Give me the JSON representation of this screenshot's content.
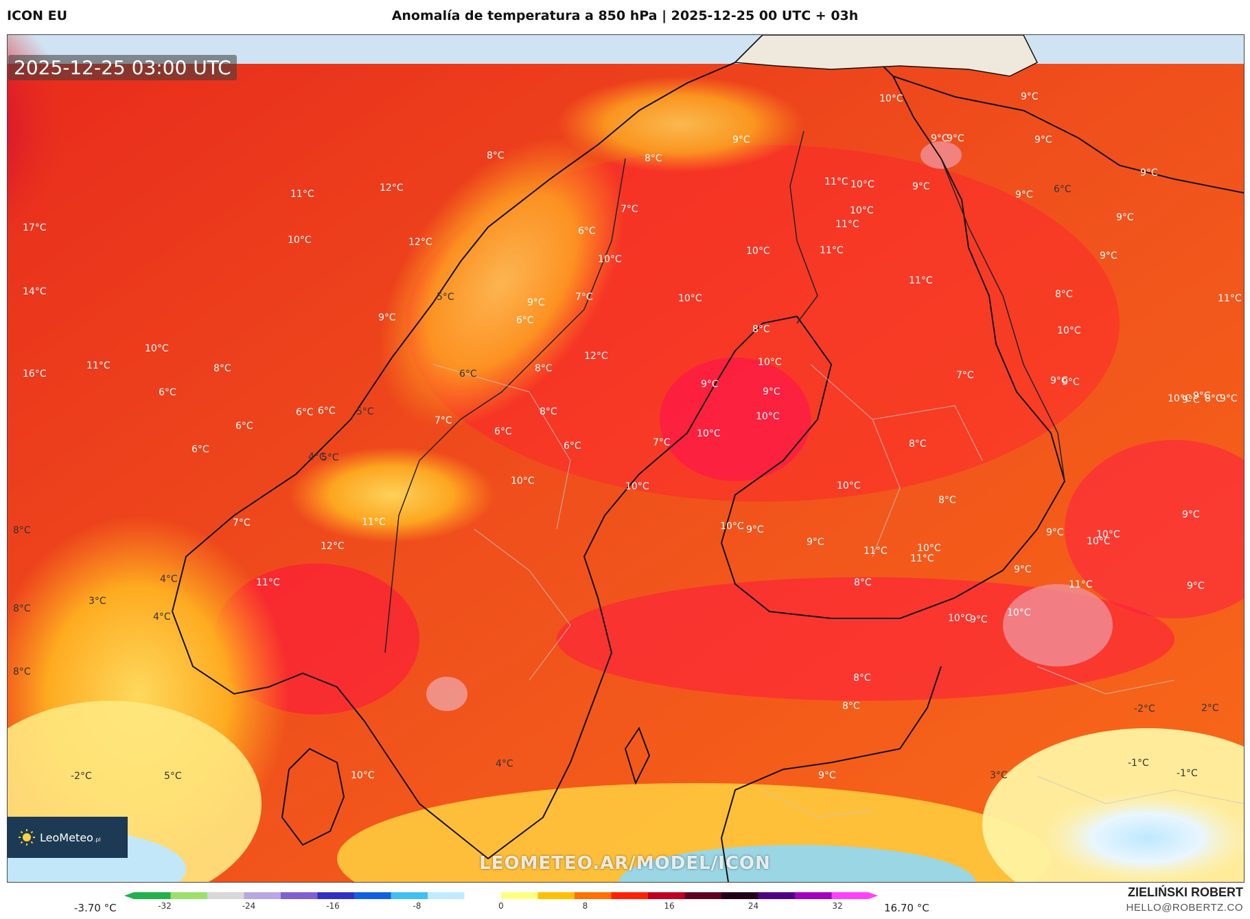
{
  "header": {
    "model": "ICON EU",
    "title": "Anomalía de temperatura a 850 hPa | 2025-12-25 00 UTC + 03h"
  },
  "map": {
    "valid_time": "2025-12-25 03:00 UTC",
    "watermark": "LEOMETEO.AR/MODEL/ICON",
    "logo": {
      "text": "LeoMeteo",
      "suffix": ".pl",
      "icon": "sun-icon"
    },
    "sea_color": "#cfe3f2",
    "labels": [
      {
        "text": "17°C",
        "color": "#ffffff"
      },
      {
        "text": "14°C",
        "color": "#ffffff"
      },
      {
        "text": "16°C",
        "color": "#ffffff"
      },
      {
        "text": "11°C",
        "color": "#ffffff"
      },
      {
        "text": "12°C",
        "color": "#ffffff"
      },
      {
        "text": "10°C",
        "color": "#ffffff"
      },
      {
        "text": "12°C",
        "color": "#ffffff"
      },
      {
        "text": "10°C",
        "color": "#ffffff"
      },
      {
        "text": "11°C",
        "color": "#ffffff"
      },
      {
        "text": "12°C",
        "color": "#ffffff"
      },
      {
        "text": "8°C",
        "color": "#ffffff"
      },
      {
        "text": "8°C",
        "color": "#ffffff"
      },
      {
        "text": "6°C",
        "color": "#ffffff"
      },
      {
        "text": "6°C",
        "color": "#ffffff"
      },
      {
        "text": "6°C",
        "color": "#ffffff"
      },
      {
        "text": "6°C",
        "color": "#ffffff"
      },
      {
        "text": "5°C",
        "color": "#333333"
      },
      {
        "text": "8°C",
        "color": "#333333"
      },
      {
        "text": "8°C",
        "color": "#333333"
      },
      {
        "text": "3°C",
        "color": "#333333"
      },
      {
        "text": "4°C",
        "color": "#333333"
      },
      {
        "text": "4°C",
        "color": "#333333"
      },
      {
        "text": "8°C",
        "color": "#333333"
      },
      {
        "text": "-2°C",
        "color": "#333333"
      },
      {
        "text": "5°C",
        "color": "#333333"
      },
      {
        "text": "9°C",
        "color": "#ffffff"
      },
      {
        "text": "8°C",
        "color": "#ffffff"
      },
      {
        "text": "9°C",
        "color": "#ffffff"
      },
      {
        "text": "10°C",
        "color": "#ffffff"
      },
      {
        "text": "11°C",
        "color": "#ffffff"
      },
      {
        "text": "9°C",
        "color": "#ffffff"
      },
      {
        "text": "8°C",
        "color": "#ffffff"
      },
      {
        "text": "7°C",
        "color": "#ffffff"
      },
      {
        "text": "6°C",
        "color": "#ffffff"
      },
      {
        "text": "7°C",
        "color": "#ffffff"
      },
      {
        "text": "5°C",
        "color": "#333333"
      },
      {
        "text": "6°C",
        "color": "#ffffff"
      },
      {
        "text": "6°C",
        "color": "#333333"
      },
      {
        "text": "8°C",
        "color": "#ffffff"
      },
      {
        "text": "7°C",
        "color": "#ffffff"
      },
      {
        "text": "8°C",
        "color": "#ffffff"
      },
      {
        "text": "6°C",
        "color": "#ffffff"
      },
      {
        "text": "7°C",
        "color": "#ffffff"
      },
      {
        "text": "6°C",
        "color": "#ffffff"
      },
      {
        "text": "5°C",
        "color": "#333333"
      },
      {
        "text": "6°C",
        "color": "#ffffff"
      },
      {
        "text": "7°C",
        "color": "#ffffff"
      },
      {
        "text": "4°C",
        "color": "#333333"
      },
      {
        "text": "11°C",
        "color": "#ffffff"
      },
      {
        "text": "12°C",
        "color": "#ffffff"
      },
      {
        "text": "11°C",
        "color": "#ffffff"
      },
      {
        "text": "10°C",
        "color": "#ffffff"
      },
      {
        "text": "10°C",
        "color": "#ffffff"
      },
      {
        "text": "10°C",
        "color": "#ffffff"
      },
      {
        "text": "9°C",
        "color": "#ffffff"
      },
      {
        "text": "10°C",
        "color": "#ffffff"
      },
      {
        "text": "10°C",
        "color": "#ffffff"
      },
      {
        "text": "10°C",
        "color": "#ffffff"
      },
      {
        "text": "9°C",
        "color": "#ffffff"
      },
      {
        "text": "9°C",
        "color": "#ffffff"
      },
      {
        "text": "9°C",
        "color": "#ffffff"
      },
      {
        "text": "9°C",
        "color": "#ffffff"
      },
      {
        "text": "9°C",
        "color": "#ffffff"
      },
      {
        "text": "9°C",
        "color": "#ffffff"
      },
      {
        "text": "9°C",
        "color": "#ffffff"
      },
      {
        "text": "9°C",
        "color": "#ffffff"
      },
      {
        "text": "9°C",
        "color": "#ffffff"
      },
      {
        "text": "8°C",
        "color": "#ffffff"
      },
      {
        "text": "6°C",
        "color": "#333333"
      },
      {
        "text": "4°C",
        "color": "#333333"
      },
      {
        "text": "10°C",
        "color": "#ffffff"
      },
      {
        "text": "11°C",
        "color": "#ffffff"
      },
      {
        "text": "10°C",
        "color": "#ffffff"
      },
      {
        "text": "10°C",
        "color": "#ffffff"
      },
      {
        "text": "11°C",
        "color": "#ffffff"
      },
      {
        "text": "11°C",
        "color": "#ffffff"
      },
      {
        "text": "10°C",
        "color": "#ffffff"
      },
      {
        "text": "9°C",
        "color": "#ffffff"
      },
      {
        "text": "10°C",
        "color": "#ffffff"
      },
      {
        "text": "10°C",
        "color": "#ffffff"
      },
      {
        "text": "9°C",
        "color": "#ffffff"
      },
      {
        "text": "9°C",
        "color": "#ffffff"
      },
      {
        "text": "10°C",
        "color": "#ffffff"
      },
      {
        "text": "11°C",
        "color": "#ffffff"
      },
      {
        "text": "11°C",
        "color": "#ffffff"
      },
      {
        "text": "10°C",
        "color": "#ffffff"
      },
      {
        "text": "8°C",
        "color": "#ffffff"
      },
      {
        "text": "8°C",
        "color": "#ffffff"
      },
      {
        "text": "8°C",
        "color": "#ffffff"
      },
      {
        "text": "7°C",
        "color": "#ffffff"
      },
      {
        "text": "10°C",
        "color": "#ffffff"
      },
      {
        "text": "9°C",
        "color": "#ffffff"
      },
      {
        "text": "8°C",
        "color": "#ffffff"
      },
      {
        "text": "8°C",
        "color": "#ffffff"
      },
      {
        "text": "3°C",
        "color": "#333333"
      },
      {
        "text": "9°C",
        "color": "#ffffff"
      },
      {
        "text": "10°C",
        "color": "#ffffff"
      },
      {
        "text": "9°C",
        "color": "#ffffff"
      },
      {
        "text": "10°C",
        "color": "#ffffff"
      },
      {
        "text": "9°C",
        "color": "#ffffff"
      },
      {
        "text": "11°C",
        "color": "#ffffff"
      },
      {
        "text": "10°C",
        "color": "#ffffff"
      },
      {
        "text": "9°C",
        "color": "#ffffff"
      },
      {
        "text": "-2°C",
        "color": "#333333"
      },
      {
        "text": "2°C",
        "color": "#333333"
      },
      {
        "text": "-1°C",
        "color": "#333333"
      },
      {
        "text": "-1°C",
        "color": "#333333"
      },
      {
        "text": "10°C",
        "color": "#ffffff"
      },
      {
        "text": "9°C",
        "color": "#ffffff"
      },
      {
        "text": "9°C",
        "color": "#ffffff"
      },
      {
        "text": "8°C",
        "color": "#ffffff"
      },
      {
        "text": "9°C",
        "color": "#ffffff"
      },
      {
        "text": "10°C",
        "color": "#ffffff"
      },
      {
        "text": "9°C",
        "color": "#ffffff"
      },
      {
        "text": "9°C",
        "color": "#ffffff"
      },
      {
        "text": "9°C",
        "color": "#ffffff"
      },
      {
        "text": "11°C",
        "color": "#ffffff"
      }
    ]
  },
  "legend": {
    "min_label": "-3.70 °C",
    "max_label": "16.70 °C",
    "ticks": [
      "-32",
      "-24",
      "-16",
      "-8",
      "0",
      "8",
      "16",
      "24",
      "32"
    ],
    "colors": [
      "#22b14c",
      "#9be06a",
      "#d8d8d8",
      "#b9a8e0",
      "#8060d0",
      "#3030c0",
      "#1060e0",
      "#40c0f0",
      "#c0ecff",
      "#ffffff",
      "#ffff80",
      "#ffc000",
      "#ff7000",
      "#ff2000",
      "#c00020",
      "#600020",
      "#200018",
      "#500080",
      "#a000c0",
      "#ff40ff"
    ]
  },
  "credits": {
    "author": "ZIELIŃSKI ROBERT",
    "email": "HELLO@ROBERTZ.CO"
  }
}
